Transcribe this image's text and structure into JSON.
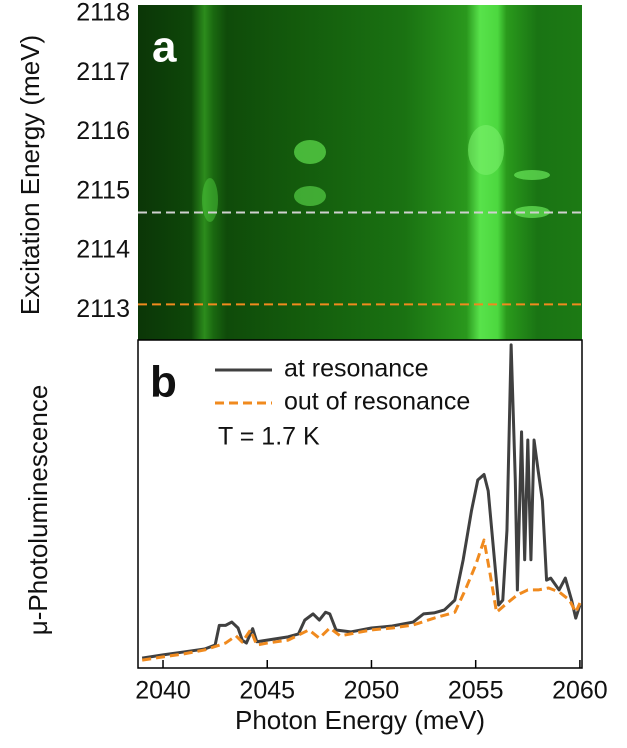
{
  "chart_data": [
    {
      "type": "heatmap",
      "label": "a",
      "ylabel": "Excitation Energy (meV)",
      "xlim": [
        2038.8,
        2060.1
      ],
      "ylim": [
        2112.5,
        2118.15
      ],
      "yticks": [
        2113,
        2114,
        2115,
        2116,
        2117,
        2118
      ],
      "markers": [
        {
          "value": 2114.65,
          "color": "#d0d0d0"
        },
        {
          "value": 2113.1,
          "color": "#f08a1e"
        }
      ]
    },
    {
      "type": "line",
      "label": "b",
      "xlabel": "Photon Energy (meV)",
      "ylabel": "μ-Photoluminescence",
      "annotation": "T = 1.7 K",
      "legend": "top-left",
      "xlim": [
        2038.8,
        2060.1
      ],
      "xticks": [
        2040,
        2045,
        2050,
        2055,
        2060
      ],
      "ylim": [
        0,
        100
      ],
      "series": [
        {
          "name": "at resonance",
          "color": "#404040",
          "dash": false,
          "x": [
            2039,
            2040,
            2041,
            2042,
            2042.5,
            2042.7,
            2043,
            2043.3,
            2043.6,
            2043.8,
            2044,
            2044.3,
            2044.5,
            2045,
            2046,
            2046.5,
            2046.8,
            2047.2,
            2047.5,
            2047.8,
            2048,
            2048.3,
            2049,
            2050,
            2051,
            2052,
            2052.5,
            2053,
            2053.5,
            2054,
            2054.4,
            2054.8,
            2055.1,
            2055.4,
            2055.6,
            2055.9,
            2056.1,
            2056.3,
            2056.5,
            2056.7,
            2056.9,
            2057,
            2057.2,
            2057.35,
            2057.5,
            2057.65,
            2057.8,
            2058,
            2058.2,
            2058.4,
            2058.6,
            2059,
            2059.3,
            2059.6,
            2059.8,
            2060
          ],
          "values": [
            3,
            4,
            4.9,
            5.8,
            7,
            13,
            13,
            14,
            12.2,
            8.5,
            7.6,
            12,
            8,
            8.5,
            9.5,
            10.4,
            14.6,
            16.5,
            14.6,
            17,
            16.5,
            11.6,
            11,
            12.2,
            12.8,
            14,
            16.5,
            16.8,
            17.7,
            20.7,
            33,
            48,
            57.3,
            59,
            54,
            33,
            19.2,
            20.7,
            42,
            98.5,
            57.3,
            23.8,
            72,
            33,
            69.5,
            33,
            69.5,
            60,
            51,
            26.8,
            27.4,
            23.8,
            27.4,
            20.7,
            15.2,
            19.2
          ]
        },
        {
          "name": "out of resonance",
          "color": "#f08a1e",
          "dash": true,
          "x": [
            2039,
            2040,
            2041,
            2042,
            2043,
            2043.5,
            2043.8,
            2044.2,
            2044.5,
            2045,
            2046,
            2047,
            2047.5,
            2048,
            2048.5,
            2049,
            2050,
            2051,
            2052,
            2053,
            2054,
            2054.5,
            2055,
            2055.4,
            2055.7,
            2056,
            2056.4,
            2057,
            2057.5,
            2058,
            2058.5,
            2059,
            2059.5,
            2059.8,
            2060
          ],
          "values": [
            2.4,
            3.4,
            4.3,
            5.5,
            7.6,
            9.8,
            7.9,
            11.6,
            7,
            7.6,
            8.5,
            11.6,
            9.1,
            12.2,
            9.8,
            10.4,
            11.6,
            12.2,
            13.1,
            15.2,
            17,
            23.8,
            31.4,
            39,
            28.4,
            17,
            19.2,
            22.3,
            23.8,
            23.8,
            24.4,
            23.2,
            20.7,
            17,
            19.8
          ]
        }
      ]
    }
  ]
}
